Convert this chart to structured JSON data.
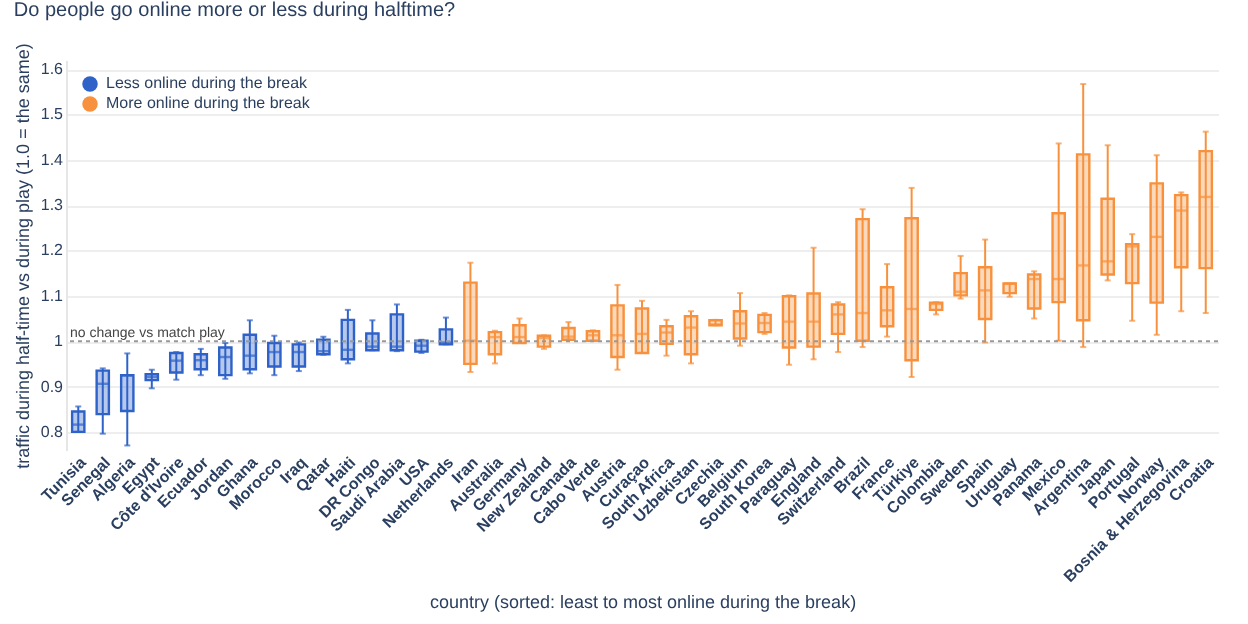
{
  "chart_data": {
    "type": "box",
    "title": "Do people go online more or less during halftime?",
    "xlabel": "country (sorted: least to most online during the break)",
    "ylabel": "traffic during half-time vs during play  (1.0 = the same)",
    "categories": [
      "Tunisia",
      "Senegal",
      "Algeria",
      "Egypt",
      "Côte d'Ivoire",
      "Ecuador",
      "Jordan",
      "Ghana",
      "Morocco",
      "Iraq",
      "Qatar",
      "Haiti",
      "DR Congo",
      "Saudi Arabia",
      "USA",
      "Netherlands",
      "Iran",
      "Australia",
      "Germany",
      "New Zealand",
      "Canada",
      "Cabo Verde",
      "Austria",
      "Curaçao",
      "South Africa",
      "Uzbekistan",
      "Czechia",
      "Belgium",
      "South Korea",
      "Paraguay",
      "England",
      "Switzerland",
      "Brazil",
      "France",
      "Türkiye",
      "Colombia",
      "Sweden",
      "Spain",
      "Uruguay",
      "Panama",
      "Mexico",
      "Argentina",
      "Japan",
      "Portugal",
      "Norway",
      "Bosnia & Herzegovina",
      "Croatia"
    ],
    "series": [
      {
        "name": "Less online during the break",
        "color": "#2f62c8",
        "x": [
          "Tunisia",
          "Senegal",
          "Algeria",
          "Egypt",
          "Côte d'Ivoire",
          "Ecuador",
          "Jordan",
          "Ghana",
          "Morocco",
          "Iraq",
          "Qatar",
          "Haiti",
          "DR Congo",
          "Saudi Arabia",
          "USA",
          "Netherlands"
        ],
        "boxes": [
          {
            "low": 0.8,
            "q1": 0.8,
            "median": 0.816,
            "q3": 0.845,
            "high": 0.856
          },
          {
            "low": 0.796,
            "q1": 0.839,
            "median": 0.906,
            "q3": 0.935,
            "high": 0.94
          },
          {
            "low": 0.77,
            "q1": 0.846,
            "median": 0.924,
            "q3": 0.925,
            "high": 0.973
          },
          {
            "low": 0.896,
            "q1": 0.914,
            "median": 0.921,
            "q3": 0.927,
            "high": 0.937
          },
          {
            "low": 0.915,
            "q1": 0.931,
            "median": 0.957,
            "q3": 0.974,
            "high": 0.976
          },
          {
            "low": 0.925,
            "q1": 0.938,
            "median": 0.958,
            "q3": 0.971,
            "high": 0.983
          },
          {
            "low": 0.917,
            "q1": 0.925,
            "median": 0.965,
            "q3": 0.986,
            "high": 0.996
          },
          {
            "low": 0.929,
            "q1": 0.938,
            "median": 0.968,
            "q3": 1.014,
            "high": 1.046
          },
          {
            "low": 0.925,
            "q1": 0.944,
            "median": 0.976,
            "q3": 0.996,
            "high": 1.012
          },
          {
            "low": 0.934,
            "q1": 0.944,
            "median": 0.976,
            "q3": 0.993,
            "high": 0.997
          },
          {
            "low": 0.97,
            "q1": 0.971,
            "median": 0.978,
            "q3": 1.003,
            "high": 1.01
          },
          {
            "low": 0.951,
            "q1": 0.96,
            "median": 0.981,
            "q3": 1.047,
            "high": 1.069
          },
          {
            "low": 0.98,
            "q1": 0.98,
            "median": 0.988,
            "q3": 1.017,
            "high": 1.046
          },
          {
            "low": 0.978,
            "q1": 0.98,
            "median": 0.988,
            "q3": 1.059,
            "high": 1.081
          },
          {
            "low": 0.974,
            "q1": 0.977,
            "median": 0.99,
            "q3": 1.001,
            "high": 1.003
          },
          {
            "low": 0.993,
            "q1": 0.993,
            "median": 0.997,
            "q3": 1.026,
            "high": 1.052
          }
        ]
      },
      {
        "name": "More online during the break",
        "color": "#f7913d",
        "x": [
          "Iran",
          "Australia",
          "Germany",
          "New Zealand",
          "Canada",
          "Cabo Verde",
          "Austria",
          "Curaçao",
          "South Africa",
          "Uzbekistan",
          "Czechia",
          "Belgium",
          "South Korea",
          "Paraguay",
          "England",
          "Switzerland",
          "Brazil",
          "France",
          "Türkiye",
          "Colombia",
          "Sweden",
          "Spain",
          "Uruguay",
          "Panama",
          "Mexico",
          "Argentina",
          "Japan",
          "Portugal",
          "Norway",
          "Bosnia & Herzegovina",
          "Croatia"
        ],
        "boxes": [
          {
            "low": 0.932,
            "q1": 0.95,
            "median": 1.001,
            "q3": 1.129,
            "high": 1.173
          },
          {
            "low": 0.951,
            "q1": 0.971,
            "median": 1.009,
            "q3": 1.02,
            "high": 1.023
          },
          {
            "low": 0.996,
            "q1": 0.996,
            "median": 1.009,
            "q3": 1.035,
            "high": 1.05
          },
          {
            "low": 0.983,
            "q1": 0.988,
            "median": 1.007,
            "q3": 1.012,
            "high": 1.013
          },
          {
            "low": 1.003,
            "q1": 1.003,
            "median": 1.01,
            "q3": 1.029,
            "high": 1.042
          },
          {
            "low": 1.001,
            "q1": 1.001,
            "median": 1.013,
            "q3": 1.022,
            "high": 1.024
          },
          {
            "low": 0.937,
            "q1": 0.965,
            "median": 1.013,
            "q3": 1.079,
            "high": 1.124
          },
          {
            "low": 0.974,
            "q1": 0.974,
            "median": 1.016,
            "q3": 1.072,
            "high": 1.089
          },
          {
            "low": 0.968,
            "q1": 0.994,
            "median": 1.019,
            "q3": 1.033,
            "high": 1.047
          },
          {
            "low": 0.951,
            "q1": 0.971,
            "median": 1.03,
            "q3": 1.055,
            "high": 1.066
          },
          {
            "low": 1.035,
            "q1": 1.035,
            "median": 1.037,
            "q3": 1.046,
            "high": 1.047
          },
          {
            "low": 0.99,
            "q1": 1.006,
            "median": 1.039,
            "q3": 1.066,
            "high": 1.106
          },
          {
            "low": 1.016,
            "q1": 1.02,
            "median": 1.04,
            "q3": 1.058,
            "high": 1.062
          },
          {
            "low": 0.948,
            "q1": 0.986,
            "median": 1.043,
            "q3": 1.099,
            "high": 1.101
          },
          {
            "low": 0.96,
            "q1": 0.988,
            "median": 1.043,
            "q3": 1.105,
            "high": 1.206
          },
          {
            "low": 0.976,
            "q1": 1.016,
            "median": 1.059,
            "q3": 1.081,
            "high": 1.086
          },
          {
            "low": 0.987,
            "q1": 1.001,
            "median": 1.062,
            "q3": 1.269,
            "high": 1.291
          },
          {
            "low": 1.01,
            "q1": 1.033,
            "median": 1.068,
            "q3": 1.119,
            "high": 1.17
          },
          {
            "low": 0.921,
            "q1": 0.958,
            "median": 1.071,
            "q3": 1.271,
            "high": 1.338
          },
          {
            "low": 1.059,
            "q1": 1.069,
            "median": 1.082,
            "q3": 1.085,
            "high": 1.086
          },
          {
            "low": 1.094,
            "q1": 1.101,
            "median": 1.109,
            "q3": 1.15,
            "high": 1.188
          },
          {
            "low": 0.997,
            "q1": 1.049,
            "median": 1.112,
            "q3": 1.163,
            "high": 1.224
          },
          {
            "low": 1.098,
            "q1": 1.106,
            "median": 1.127,
            "q3": 1.127,
            "high": 1.127
          },
          {
            "low": 1.05,
            "q1": 1.072,
            "median": 1.137,
            "q3": 1.147,
            "high": 1.154
          },
          {
            "low": 1.001,
            "q1": 1.086,
            "median": 1.137,
            "q3": 1.282,
            "high": 1.436
          },
          {
            "low": 0.987,
            "q1": 1.046,
            "median": 1.167,
            "q3": 1.412,
            "high": 1.567
          },
          {
            "low": 1.134,
            "q1": 1.147,
            "median": 1.176,
            "q3": 1.314,
            "high": 1.432
          },
          {
            "low": 1.045,
            "q1": 1.128,
            "median": 1.209,
            "q3": 1.214,
            "high": 1.236
          },
          {
            "low": 1.014,
            "q1": 1.085,
            "median": 1.23,
            "q3": 1.348,
            "high": 1.41
          },
          {
            "low": 1.066,
            "q1": 1.163,
            "median": 1.288,
            "q3": 1.322,
            "high": 1.328
          },
          {
            "low": 1.062,
            "q1": 1.161,
            "median": 1.318,
            "q3": 1.419,
            "high": 1.462
          }
        ]
      }
    ],
    "ylim": [
      0.76,
      1.62
    ],
    "yticks": [
      0.8,
      0.9,
      1,
      1.1,
      1.2,
      1.3,
      1.4,
      1.5,
      1.6
    ],
    "grid": "y",
    "legend": "top left",
    "ref_lines": [
      {
        "axis": "y",
        "value": 1,
        "label": "no change vs match play",
        "color": "#999999",
        "line_style": "dotted"
      }
    ]
  }
}
